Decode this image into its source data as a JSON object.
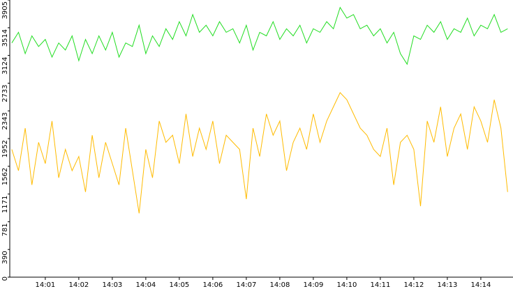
{
  "chart_data": {
    "type": "line",
    "x": [
      840,
      840.2,
      840.4,
      840.6,
      840.8,
      841,
      841.2,
      841.4,
      841.6,
      841.8,
      842,
      842.2,
      842.4,
      842.6,
      842.8,
      843,
      843.2,
      843.4,
      843.6,
      843.8,
      844,
      844.2,
      844.4,
      844.6,
      844.8,
      845,
      845.2,
      845.4,
      845.6,
      845.8,
      846,
      846.2,
      846.4,
      846.6,
      846.8,
      847,
      847.2,
      847.4,
      847.6,
      847.8,
      848,
      848.2,
      848.4,
      848.6,
      848.8,
      849,
      849.2,
      849.4,
      849.6,
      849.8,
      850,
      850.2,
      850.4,
      850.6,
      850.8,
      851,
      851.2,
      851.4,
      851.6,
      851.8,
      852,
      852.2,
      852.4,
      852.6,
      852.8,
      853,
      853.2,
      853.4,
      853.6,
      853.8,
      854,
      854.2,
      854.4,
      854.6,
      854.8
    ],
    "series": [
      {
        "color": "#22dd22",
        "values": [
          3300,
          3450,
          3150,
          3400,
          3250,
          3350,
          3100,
          3300,
          3200,
          3400,
          3050,
          3350,
          3150,
          3400,
          3200,
          3450,
          3100,
          3300,
          3250,
          3550,
          3150,
          3400,
          3250,
          3500,
          3350,
          3600,
          3400,
          3700,
          3450,
          3550,
          3400,
          3600,
          3450,
          3500,
          3300,
          3550,
          3200,
          3450,
          3400,
          3600,
          3350,
          3500,
          3400,
          3550,
          3300,
          3500,
          3450,
          3600,
          3500,
          3800,
          3650,
          3700,
          3500,
          3550,
          3400,
          3500,
          3300,
          3450,
          3150,
          3000,
          3400,
          3350,
          3550,
          3450,
          3600,
          3350,
          3500,
          3450,
          3650,
          3400,
          3550,
          3500,
          3700,
          3450,
          3500
        ]
      },
      {
        "color": "#ffbb00",
        "values": [
          1800,
          1500,
          2100,
          1300,
          1900,
          1600,
          2200,
          1400,
          1800,
          1500,
          1700,
          1200,
          2000,
          1400,
          1900,
          1600,
          1300,
          2100,
          1500,
          900,
          1800,
          1400,
          2200,
          1900,
          2000,
          1600,
          2300,
          1700,
          2100,
          1800,
          2200,
          1600,
          2000,
          1900,
          1800,
          1100,
          2100,
          1700,
          2300,
          2000,
          2200,
          1500,
          1900,
          2100,
          1800,
          2300,
          1900,
          2200,
          2400,
          2600,
          2500,
          2300,
          2100,
          2000,
          1800,
          1700,
          2100,
          1300,
          1900,
          2000,
          1800,
          1000,
          2200,
          1900,
          2400,
          1700,
          2100,
          2300,
          1800,
          2400,
          2200,
          1900,
          2500,
          2100,
          1200
        ]
      }
    ],
    "xlim": [
      839.94,
      854.96
    ],
    "xticks": [
      {
        "value": 841,
        "label": "14:01"
      },
      {
        "value": 842,
        "label": "14:02"
      },
      {
        "value": 843,
        "label": "14:03"
      },
      {
        "value": 844,
        "label": "14:04"
      },
      {
        "value": 845,
        "label": "14:05"
      },
      {
        "value": 846,
        "label": "14:06"
      },
      {
        "value": 847,
        "label": "14:07"
      },
      {
        "value": 848,
        "label": "14:08"
      },
      {
        "value": 849,
        "label": "14:09"
      },
      {
        "value": 850,
        "label": "14:10"
      },
      {
        "value": 851,
        "label": "14:11"
      },
      {
        "value": 852,
        "label": "14:12"
      },
      {
        "value": 853,
        "label": "14:13"
      },
      {
        "value": 854,
        "label": "14:14"
      }
    ],
    "ylim": [
      0,
      3905
    ],
    "yticks": [
      0,
      390,
      781,
      1171,
      1562,
      1952,
      2343,
      2733,
      3124,
      3514,
      3905
    ]
  }
}
